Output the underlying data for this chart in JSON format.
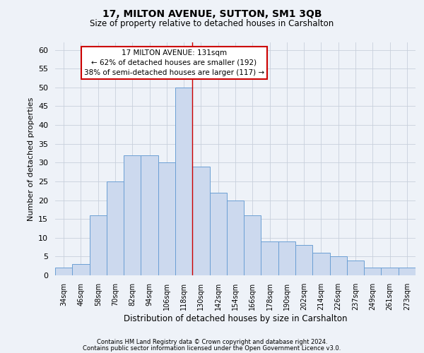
{
  "title": "17, MILTON AVENUE, SUTTON, SM1 3QB",
  "subtitle": "Size of property relative to detached houses in Carshalton",
  "xlabel": "Distribution of detached houses by size in Carshalton",
  "ylabel": "Number of detached properties",
  "categories": [
    "34sqm",
    "46sqm",
    "58sqm",
    "70sqm",
    "82sqm",
    "94sqm",
    "106sqm",
    "118sqm",
    "130sqm",
    "142sqm",
    "154sqm",
    "166sqm",
    "178sqm",
    "190sqm",
    "202sqm",
    "214sqm",
    "226sqm",
    "237sqm",
    "249sqm",
    "261sqm",
    "273sqm"
  ],
  "values": [
    2,
    3,
    16,
    25,
    32,
    32,
    30,
    50,
    29,
    22,
    20,
    16,
    9,
    9,
    8,
    6,
    5,
    4,
    2,
    2,
    2
  ],
  "bar_color": "#ccd9ee",
  "bar_edge_color": "#6b9fd4",
  "grid_color": "#c8d0dc",
  "vline_color": "#cc0000",
  "annotation_text": "17 MILTON AVENUE: 131sqm\n← 62% of detached houses are smaller (192)\n38% of semi-detached houses are larger (117) →",
  "annotation_box_color": "#ffffff",
  "annotation_box_edge_color": "#cc0000",
  "ylim": [
    0,
    62
  ],
  "yticks": [
    0,
    5,
    10,
    15,
    20,
    25,
    30,
    35,
    40,
    45,
    50,
    55,
    60
  ],
  "footnote1": "Contains HM Land Registry data © Crown copyright and database right 2024.",
  "footnote2": "Contains public sector information licensed under the Open Government Licence v3.0.",
  "background_color": "#eef2f8"
}
